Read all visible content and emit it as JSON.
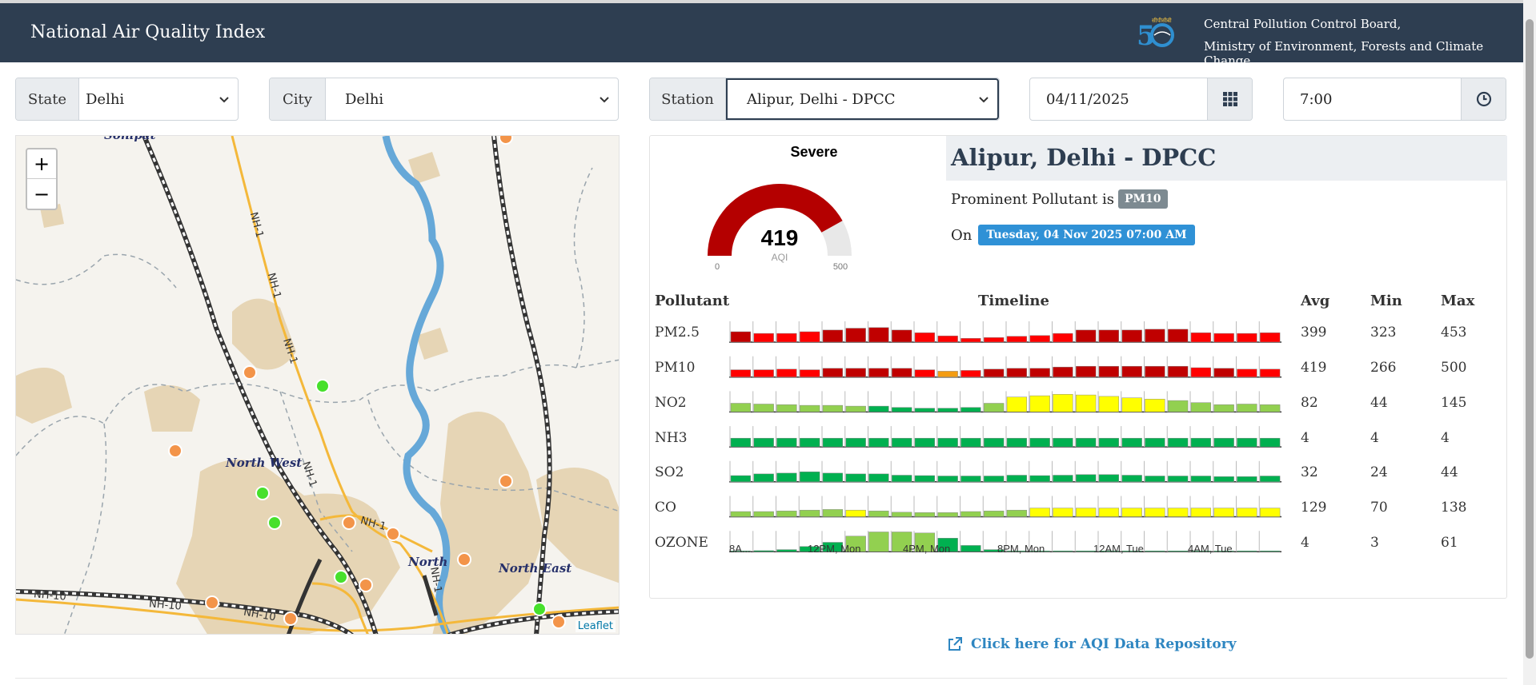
{
  "header": {
    "title": "National Air Quality Index",
    "org_line1": "Central Pollution Control Board,",
    "org_line2": "Ministry of Environment, Forests and Climate Change",
    "logo_icon": "cpcb-50-years-logo"
  },
  "filters": {
    "state_label": "State",
    "state_value": "Delhi",
    "city_label": "City",
    "city_value": "Delhi",
    "station_label": "Station",
    "station_value": "Alipur, Delhi - DPCC",
    "date_value": "04/11/2025",
    "date_icon": "calendar-grid-icon",
    "time_value": "7:00",
    "time_icon": "clock-icon"
  },
  "map": {
    "zoom_in": "+",
    "zoom_out": "−",
    "attribution": "Leaflet",
    "labels": {
      "sonipat": "Sonipat",
      "north_west": "North West",
      "north": "North",
      "north_east": "North East"
    },
    "highway_labels": [
      "NH-1",
      "NH-1",
      "NH-1",
      "NH-1",
      "NH-1",
      "NH-1",
      "NH-10",
      "NH-10",
      "NH-10"
    ],
    "marker_colors": {
      "good": "#47e02c",
      "poor": "#f39449"
    }
  },
  "aqi": {
    "category": "Severe",
    "value": 419,
    "label": "AQI",
    "min": "0",
    "max": "500",
    "scale_max": 500,
    "gauge_color": "#b40000"
  },
  "station": {
    "name": "Alipur, Delhi - DPCC",
    "prominent_prefix": "Prominent Pollutant is",
    "prominent_pollutant": "PM10",
    "on_prefix": "On",
    "datetime": "Tuesday, 04 Nov 2025 07:00 AM"
  },
  "table": {
    "headers": {
      "pollutant": "Pollutant",
      "timeline": "Timeline",
      "avg": "Avg",
      "min": "Min",
      "max": "Max"
    },
    "time_ticks": [
      "8A...",
      "12PM, Mon",
      "4PM, Mon",
      "8PM, Mon",
      "12AM, Tue",
      "4AM, Tue"
    ],
    "colors": {
      "severe": "#c00000",
      "very_poor": "#ff0000",
      "poor": "#f39c12",
      "moderate": "#ffff00",
      "satisfactory": "#92d050",
      "good": "#00b050"
    },
    "rows": [
      {
        "name": "PM2.5",
        "avg": "399",
        "min": "323",
        "max": "453",
        "heights": [
          0.5,
          0.42,
          0.42,
          0.5,
          0.58,
          0.67,
          0.7,
          0.58,
          0.45,
          0.3,
          0.18,
          0.22,
          0.28,
          0.32,
          0.42,
          0.58,
          0.58,
          0.58,
          0.62,
          0.62,
          0.45,
          0.42,
          0.42,
          0.45
        ],
        "colors": [
          "severe",
          "very_poor",
          "very_poor",
          "very_poor",
          "severe",
          "severe",
          "severe",
          "severe",
          "very_poor",
          "very_poor",
          "very_poor",
          "very_poor",
          "very_poor",
          "very_poor",
          "very_poor",
          "severe",
          "severe",
          "severe",
          "severe",
          "severe",
          "very_poor",
          "very_poor",
          "very_poor",
          "very_poor"
        ]
      },
      {
        "name": "PM10",
        "avg": "419",
        "min": "266",
        "max": "500",
        "heights": [
          0.35,
          0.35,
          0.38,
          0.35,
          0.42,
          0.42,
          0.42,
          0.42,
          0.35,
          0.28,
          0.32,
          0.38,
          0.42,
          0.42,
          0.48,
          0.52,
          0.52,
          0.52,
          0.52,
          0.52,
          0.45,
          0.42,
          0.38,
          0.38
        ],
        "colors": [
          "very_poor",
          "very_poor",
          "very_poor",
          "very_poor",
          "severe",
          "severe",
          "severe",
          "severe",
          "very_poor",
          "poor",
          "very_poor",
          "severe",
          "severe",
          "severe",
          "severe",
          "severe",
          "severe",
          "severe",
          "severe",
          "severe",
          "very_poor",
          "severe",
          "very_poor",
          "very_poor"
        ]
      },
      {
        "name": "NO2",
        "avg": "82",
        "min": "44",
        "max": "145",
        "heights": [
          0.42,
          0.38,
          0.35,
          0.32,
          0.32,
          0.28,
          0.28,
          0.22,
          0.18,
          0.18,
          0.22,
          0.42,
          0.72,
          0.78,
          0.85,
          0.82,
          0.75,
          0.68,
          0.62,
          0.55,
          0.45,
          0.35,
          0.38,
          0.35
        ],
        "colors": [
          "satisfactory",
          "satisfactory",
          "satisfactory",
          "satisfactory",
          "satisfactory",
          "satisfactory",
          "good",
          "good",
          "good",
          "good",
          "good",
          "satisfactory",
          "moderate",
          "moderate",
          "moderate",
          "moderate",
          "moderate",
          "moderate",
          "moderate",
          "satisfactory",
          "satisfactory",
          "satisfactory",
          "satisfactory",
          "satisfactory"
        ]
      },
      {
        "name": "NH3",
        "avg": "4",
        "min": "4",
        "max": "4",
        "heights": [
          0.42,
          0.42,
          0.42,
          0.42,
          0.42,
          0.42,
          0.42,
          0.42,
          0.42,
          0.42,
          0.42,
          0.42,
          0.42,
          0.42,
          0.42,
          0.42,
          0.42,
          0.42,
          0.42,
          0.42,
          0.42,
          0.42,
          0.42,
          0.42
        ],
        "colors": [
          "good",
          "good",
          "good",
          "good",
          "good",
          "good",
          "good",
          "good",
          "good",
          "good",
          "good",
          "good",
          "good",
          "good",
          "good",
          "good",
          "good",
          "good",
          "good",
          "good",
          "good",
          "good",
          "good",
          "good"
        ]
      },
      {
        "name": "SO2",
        "avg": "32",
        "min": "24",
        "max": "44",
        "heights": [
          0.3,
          0.38,
          0.42,
          0.48,
          0.42,
          0.38,
          0.38,
          0.32,
          0.3,
          0.28,
          0.28,
          0.28,
          0.32,
          0.3,
          0.32,
          0.35,
          0.35,
          0.32,
          0.28,
          0.28,
          0.28,
          0.25,
          0.25,
          0.28
        ],
        "colors": [
          "good",
          "good",
          "good",
          "good",
          "good",
          "good",
          "good",
          "good",
          "good",
          "good",
          "good",
          "good",
          "good",
          "good",
          "good",
          "good",
          "good",
          "good",
          "good",
          "good",
          "good",
          "good",
          "good",
          "good"
        ]
      },
      {
        "name": "CO",
        "avg": "129",
        "min": "70",
        "max": "138",
        "heights": [
          0.25,
          0.25,
          0.28,
          0.32,
          0.35,
          0.32,
          0.28,
          0.22,
          0.2,
          0.2,
          0.25,
          0.28,
          0.32,
          0.42,
          0.42,
          0.42,
          0.42,
          0.42,
          0.42,
          0.42,
          0.42,
          0.42,
          0.42,
          0.42
        ],
        "colors": [
          "satisfactory",
          "satisfactory",
          "satisfactory",
          "satisfactory",
          "satisfactory",
          "moderate",
          "satisfactory",
          "satisfactory",
          "satisfactory",
          "satisfactory",
          "satisfactory",
          "satisfactory",
          "satisfactory",
          "moderate",
          "moderate",
          "moderate",
          "moderate",
          "moderate",
          "moderate",
          "moderate",
          "moderate",
          "moderate",
          "moderate",
          "moderate"
        ]
      },
      {
        "name": "OZONE",
        "avg": "4",
        "min": "3",
        "max": "61",
        "heights": [
          0.02,
          0.05,
          0.1,
          0.25,
          0.45,
          0.75,
          0.95,
          0.95,
          0.9,
          0.65,
          0.3,
          0.1,
          0.04,
          0.02,
          0.02,
          0.02,
          0.02,
          0.02,
          0.02,
          0.02,
          0.02,
          0.02,
          0.02,
          0.02
        ],
        "colors": [
          "good",
          "good",
          "good",
          "good",
          "good",
          "satisfactory",
          "satisfactory",
          "satisfactory",
          "satisfactory",
          "good",
          "good",
          "good",
          "good",
          "good",
          "good",
          "good",
          "good",
          "good",
          "good",
          "good",
          "good",
          "good",
          "good",
          "good"
        ]
      }
    ]
  },
  "repository": {
    "link_text": "Click here for AQI Data Repository",
    "icon": "external-link-icon"
  }
}
